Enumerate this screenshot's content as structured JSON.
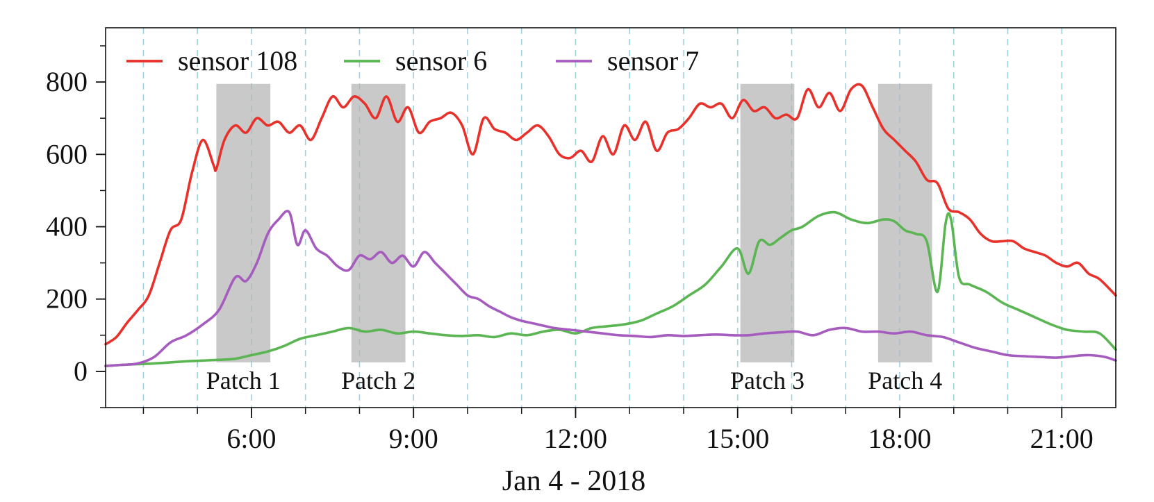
{
  "chart_data": {
    "type": "line",
    "title": "",
    "xlabel": "Jan 4 - 2018",
    "ylabel": "",
    "x_unit": "hour of day",
    "xlim": [
      3.3,
      22.0
    ],
    "ylim": [
      -100,
      950
    ],
    "x_ticks": [
      {
        "value": 6,
        "label": "6:00"
      },
      {
        "value": 9,
        "label": "9:00"
      },
      {
        "value": 12,
        "label": "12:00"
      },
      {
        "value": 15,
        "label": "15:00"
      },
      {
        "value": 18,
        "label": "18:00"
      },
      {
        "value": 21,
        "label": "21:00"
      }
    ],
    "y_ticks": [
      {
        "value": 0,
        "label": "0"
      },
      {
        "value": 200,
        "label": "200"
      },
      {
        "value": 400,
        "label": "400"
      },
      {
        "value": 600,
        "label": "600"
      },
      {
        "value": 800,
        "label": "800"
      }
    ],
    "hour_gridlines": [
      4,
      5,
      6,
      7,
      8,
      9,
      10,
      11,
      12,
      13,
      14,
      15,
      16,
      17,
      18,
      19,
      20,
      21
    ],
    "legend_position": "top-left",
    "patches": [
      {
        "label": "Patch 1",
        "x_start": 5.35,
        "x_end": 6.35,
        "y_bottom": 25,
        "y_top": 795
      },
      {
        "label": "Patch 2",
        "x_start": 7.85,
        "x_end": 8.85,
        "y_bottom": 25,
        "y_top": 795
      },
      {
        "label": "Patch 3",
        "x_start": 15.05,
        "x_end": 16.05,
        "y_bottom": 25,
        "y_top": 795
      },
      {
        "label": "Patch 4",
        "x_start": 17.6,
        "x_end": 18.6,
        "y_bottom": 25,
        "y_top": 795
      }
    ],
    "series": [
      {
        "name": "sensor 108",
        "color": "#e8312a",
        "x": [
          3.3,
          3.5,
          3.7,
          3.9,
          4.1,
          4.3,
          4.5,
          4.7,
          4.9,
          5.1,
          5.3,
          5.35,
          5.5,
          5.7,
          5.9,
          6.1,
          6.3,
          6.5,
          6.7,
          6.9,
          7.1,
          7.3,
          7.5,
          7.7,
          7.9,
          8.1,
          8.3,
          8.5,
          8.7,
          8.9,
          9.1,
          9.3,
          9.5,
          9.7,
          9.9,
          10.1,
          10.3,
          10.5,
          10.7,
          10.9,
          11.1,
          11.3,
          11.5,
          11.7,
          11.9,
          12.1,
          12.3,
          12.5,
          12.7,
          12.9,
          13.1,
          13.3,
          13.5,
          13.7,
          13.9,
          14.1,
          14.3,
          14.5,
          14.7,
          14.9,
          15.1,
          15.3,
          15.5,
          15.7,
          15.9,
          16.1,
          16.3,
          16.5,
          16.7,
          16.9,
          17.1,
          17.3,
          17.5,
          17.7,
          17.9,
          18.1,
          18.3,
          18.5,
          18.7,
          18.9,
          19.1,
          19.3,
          19.5,
          19.7,
          19.9,
          20.1,
          20.3,
          20.5,
          20.7,
          20.9,
          21.1,
          21.3,
          21.5,
          21.7,
          22.0
        ],
        "values": [
          75,
          95,
          135,
          170,
          210,
          300,
          390,
          420,
          550,
          640,
          570,
          560,
          640,
          680,
          660,
          700,
          680,
          690,
          660,
          680,
          640,
          700,
          760,
          730,
          760,
          740,
          700,
          760,
          690,
          730,
          660,
          690,
          700,
          715,
          680,
          600,
          700,
          670,
          660,
          640,
          660,
          680,
          650,
          600,
          590,
          610,
          580,
          650,
          600,
          680,
          640,
          690,
          610,
          660,
          670,
          700,
          740,
          730,
          740,
          700,
          750,
          720,
          730,
          700,
          710,
          700,
          780,
          730,
          770,
          720,
          780,
          790,
          730,
          670,
          640,
          610,
          580,
          530,
          520,
          450,
          440,
          420,
          380,
          360,
          360,
          360,
          340,
          330,
          320,
          300,
          290,
          300,
          270,
          255,
          210
        ]
      },
      {
        "name": "sensor 6",
        "color": "#5ab552",
        "x": [
          3.3,
          3.6,
          3.9,
          4.2,
          4.5,
          4.8,
          5.1,
          5.4,
          5.7,
          6.0,
          6.3,
          6.6,
          6.9,
          7.2,
          7.5,
          7.8,
          8.1,
          8.4,
          8.7,
          9.0,
          9.3,
          9.6,
          9.9,
          10.2,
          10.5,
          10.8,
          11.1,
          11.4,
          11.7,
          12.0,
          12.3,
          12.6,
          12.9,
          13.2,
          13.5,
          13.8,
          14.1,
          14.4,
          14.7,
          15.0,
          15.2,
          15.4,
          15.6,
          15.8,
          16.0,
          16.2,
          16.5,
          16.8,
          17.1,
          17.4,
          17.7,
          17.9,
          18.1,
          18.3,
          18.5,
          18.7,
          18.85,
          18.95,
          19.1,
          19.3,
          19.6,
          19.9,
          20.2,
          20.5,
          20.8,
          21.1,
          21.4,
          21.7,
          22.0
        ],
        "values": [
          15,
          18,
          20,
          22,
          25,
          28,
          30,
          32,
          35,
          45,
          55,
          70,
          90,
          100,
          110,
          120,
          110,
          115,
          105,
          110,
          105,
          100,
          98,
          100,
          95,
          105,
          100,
          110,
          115,
          105,
          120,
          125,
          130,
          140,
          160,
          180,
          210,
          240,
          290,
          340,
          270,
          360,
          350,
          370,
          390,
          400,
          430,
          440,
          420,
          410,
          420,
          415,
          390,
          380,
          360,
          220,
          410,
          420,
          260,
          240,
          220,
          190,
          170,
          150,
          130,
          115,
          110,
          105,
          60
        ]
      },
      {
        "name": "sensor 7",
        "color": "#a65cbe",
        "x": [
          3.3,
          3.6,
          3.9,
          4.2,
          4.5,
          4.8,
          5.1,
          5.4,
          5.7,
          5.9,
          6.1,
          6.3,
          6.5,
          6.7,
          6.85,
          7.0,
          7.2,
          7.4,
          7.6,
          7.8,
          8.0,
          8.2,
          8.4,
          8.6,
          8.8,
          9.0,
          9.2,
          9.4,
          9.6,
          9.8,
          10.0,
          10.2,
          10.4,
          10.6,
          10.8,
          11.0,
          11.3,
          11.6,
          11.9,
          12.2,
          12.5,
          12.8,
          13.1,
          13.4,
          13.7,
          14.0,
          14.3,
          14.6,
          14.9,
          15.2,
          15.5,
          15.8,
          16.1,
          16.4,
          16.7,
          17.0,
          17.3,
          17.6,
          17.9,
          18.2,
          18.5,
          18.8,
          19.1,
          19.4,
          19.7,
          20.0,
          20.3,
          20.6,
          20.9,
          21.2,
          21.5,
          21.8,
          22.0
        ],
        "values": [
          15,
          18,
          22,
          40,
          80,
          100,
          130,
          170,
          260,
          250,
          300,
          380,
          420,
          440,
          350,
          390,
          340,
          320,
          290,
          280,
          320,
          310,
          330,
          300,
          320,
          290,
          330,
          300,
          270,
          240,
          210,
          200,
          180,
          165,
          150,
          140,
          130,
          120,
          115,
          110,
          105,
          100,
          98,
          95,
          100,
          98,
          100,
          102,
          100,
          100,
          105,
          108,
          110,
          100,
          115,
          120,
          110,
          110,
          105,
          110,
          100,
          95,
          80,
          65,
          55,
          45,
          42,
          40,
          38,
          42,
          45,
          40,
          30
        ]
      }
    ]
  }
}
